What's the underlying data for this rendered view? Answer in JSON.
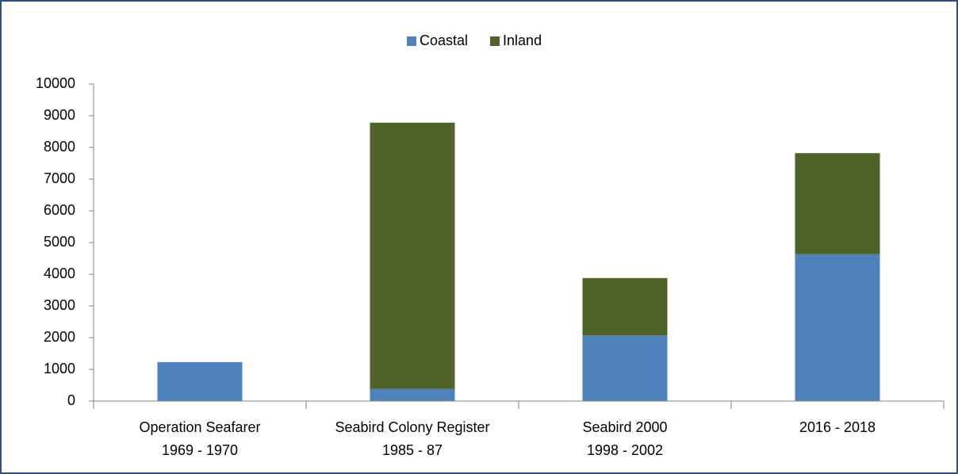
{
  "chart_data": {
    "type": "stacked_bar",
    "categories": [
      [
        "Operation Seafarer",
        "1969 - 1970"
      ],
      [
        "Seabird Colony Register",
        "1985 - 87"
      ],
      [
        "Seabird 2000",
        "1998 - 2002"
      ],
      [
        "2016 - 2018"
      ]
    ],
    "series": [
      {
        "name": "Coastal",
        "color": "#4f81bd",
        "values": [
          1230,
          380,
          2070,
          4630
        ]
      },
      {
        "name": "Inland",
        "color": "#4f6228",
        "values": [
          0,
          8400,
          1810,
          3190
        ]
      }
    ],
    "ylim": [
      0,
      10000
    ],
    "yticks": [
      0,
      1000,
      2000,
      3000,
      4000,
      5000,
      6000,
      7000,
      8000,
      9000,
      10000
    ],
    "grid": false,
    "legend": "top"
  }
}
